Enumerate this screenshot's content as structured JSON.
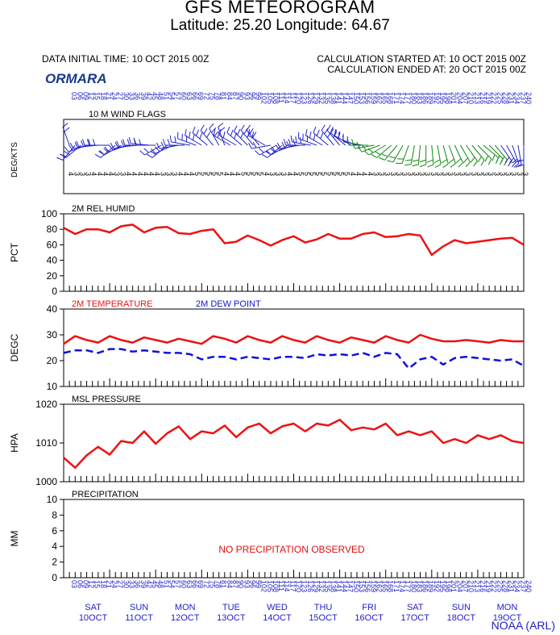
{
  "header": {
    "title": "GFS METEOROGRAM",
    "subtitle": "Latitude: 25.20 Longitude:  64.67",
    "data_initial_time": "DATA INITIAL TIME: 10 OCT 2015 00Z",
    "calc_started": "CALCULATION STARTED AT: 10 OCT 2015 00Z",
    "calc_ended": "CALCULATION ENDED AT: 20 OCT 2015 00Z",
    "station": "ORMARA",
    "credit": "NOAA (ARL)"
  },
  "colors": {
    "temperature": "#ee1111",
    "dewpoint": "#1111dd",
    "humidity": "#ee1111",
    "pressure": "#ee1111",
    "wind_blue": "#2222cc",
    "wind_green": "#118811",
    "label_blue": "#2222cc",
    "no_precip": "#dd1111"
  },
  "days": [
    {
      "dow": "SAT",
      "date": "10OCT"
    },
    {
      "dow": "SUN",
      "date": "11OCT"
    },
    {
      "dow": "MON",
      "date": "12OCT"
    },
    {
      "dow": "TUE",
      "date": "13OCT"
    },
    {
      "dow": "WED",
      "date": "14OCT"
    },
    {
      "dow": "THU",
      "date": "15OCT"
    },
    {
      "dow": "FRI",
      "date": "16OCT"
    },
    {
      "dow": "SAT",
      "date": "17OCT"
    },
    {
      "dow": "SUN",
      "date": "18OCT"
    },
    {
      "dow": "MON",
      "date": "19OCT"
    }
  ],
  "chart_data": [
    {
      "type": "wind_flags",
      "title": "10 M  WIND FLAGS",
      "ylabel": "DEG/KTS",
      "x_hours": [
        0,
        240
      ],
      "time_ticks_top": [
        "03",
        "06",
        "09",
        "12",
        "15",
        "18",
        "21",
        "24",
        "27",
        "30",
        "33",
        "36",
        "39",
        "42",
        "45",
        "48",
        "51",
        "54",
        "57",
        "60",
        "63",
        "66",
        "69",
        "72",
        "75",
        "78",
        "81",
        "84",
        "87",
        "90",
        "93",
        "96",
        "99",
        "102",
        "105",
        "108",
        "111",
        "114",
        "117",
        "120",
        "123",
        "126",
        "129",
        "132",
        "135",
        "138",
        "141",
        "144",
        "147",
        "150",
        "153",
        "156",
        "159",
        "162",
        "165",
        "168",
        "171",
        "174",
        "177",
        "180",
        "183",
        "186",
        "189",
        "192",
        "195",
        "198",
        "201",
        "204",
        "207",
        "210",
        "213",
        "216",
        "219",
        "222",
        "225",
        "228",
        "231",
        "234",
        "237",
        "240"
      ],
      "direction_deg": [
        340,
        220,
        230,
        250,
        260,
        265,
        270,
        270,
        230,
        240,
        250,
        260,
        265,
        270,
        275,
        270,
        240,
        230,
        245,
        260,
        270,
        280,
        290,
        300,
        310,
        320,
        330,
        340,
        300,
        300,
        310,
        315,
        320,
        320,
        300,
        260,
        240,
        230,
        240,
        250,
        260,
        270,
        280,
        290,
        300,
        310,
        320,
        320,
        310,
        300,
        290,
        280,
        270,
        260,
        250,
        240,
        230,
        220,
        210,
        200,
        190,
        185,
        180,
        175,
        170,
        165,
        160,
        155,
        150,
        145,
        140,
        135,
        130,
        135,
        140,
        145,
        150,
        160,
        170,
        180
      ],
      "speed_kts": [
        4,
        3,
        3,
        3,
        4,
        4,
        4,
        4,
        3,
        3,
        4,
        4,
        4,
        4,
        4,
        4,
        3,
        3,
        3,
        4,
        4,
        4,
        5,
        5,
        5,
        5,
        5,
        4,
        4,
        4,
        5,
        5,
        5,
        5,
        4,
        3,
        3,
        3,
        4,
        4,
        5,
        5,
        5,
        5,
        5,
        5,
        5,
        5,
        5,
        4,
        4,
        4,
        4,
        3,
        3,
        3,
        3,
        3,
        3,
        3,
        3,
        3,
        3,
        3,
        3,
        3,
        3,
        3,
        3,
        3,
        3,
        3,
        3,
        3,
        3,
        3,
        3,
        3,
        3,
        3
      ]
    },
    {
      "type": "line",
      "title": "2M REL HUMID",
      "ylabel": "PCT",
      "ylim": [
        0,
        100
      ],
      "yticks": [
        0,
        20,
        40,
        60,
        80,
        100
      ],
      "x_hours": [
        0,
        6,
        12,
        18,
        24,
        30,
        36,
        42,
        48,
        54,
        60,
        66,
        72,
        78,
        84,
        90,
        96,
        102,
        108,
        114,
        120,
        126,
        132,
        138,
        144,
        150,
        156,
        162,
        168,
        174,
        180,
        186,
        192,
        198,
        204,
        210,
        216,
        222,
        228,
        234,
        240
      ],
      "series": [
        {
          "name": "2M REL HUMID",
          "values": [
            82,
            74,
            80,
            80,
            76,
            84,
            86,
            76,
            82,
            83,
            75,
            74,
            78,
            80,
            62,
            64,
            72,
            66,
            59,
            66,
            71,
            63,
            67,
            74,
            68,
            68,
            74,
            76,
            70,
            71,
            74,
            72,
            47,
            58,
            66,
            62,
            64,
            66,
            68,
            69,
            60
          ]
        }
      ]
    },
    {
      "type": "line",
      "ylabel": "DEGC",
      "ylim": [
        10,
        40
      ],
      "yticks": [
        10,
        20,
        30,
        40
      ],
      "legend": [
        "2M TEMPERATURE",
        "2M   DEW POINT"
      ],
      "x_hours": [
        0,
        6,
        12,
        18,
        24,
        30,
        36,
        42,
        48,
        54,
        60,
        66,
        72,
        78,
        84,
        90,
        96,
        102,
        108,
        114,
        120,
        126,
        132,
        138,
        144,
        150,
        156,
        162,
        168,
        174,
        180,
        186,
        192,
        198,
        204,
        210,
        216,
        222,
        228,
        234,
        240
      ],
      "series": [
        {
          "name": "2M TEMPERATURE",
          "values": [
            26.5,
            29.5,
            28,
            27,
            29.5,
            28,
            27,
            29,
            28,
            27,
            28.5,
            27.5,
            26.5,
            29.5,
            28.5,
            27,
            29.5,
            28,
            27,
            29.5,
            28,
            27,
            29.5,
            28,
            27,
            29,
            28,
            27,
            29.5,
            28,
            27,
            30,
            28.5,
            27.5,
            27.5,
            28,
            27.5,
            27,
            28,
            27.5,
            27.5
          ]
        },
        {
          "name": "2M   DEW POINT",
          "values": [
            23,
            24,
            24,
            23,
            24.5,
            24.5,
            23.5,
            24,
            23.5,
            23,
            23,
            22.5,
            20.5,
            21.5,
            21.5,
            20.5,
            21.5,
            21,
            20.5,
            21.5,
            21.5,
            21,
            22.5,
            22,
            22.5,
            22,
            23,
            21.5,
            23,
            22.5,
            17,
            20.5,
            21.5,
            18.5,
            21,
            21.5,
            21,
            20.5,
            20,
            20.5,
            18
          ]
        }
      ]
    },
    {
      "type": "line",
      "title": "MSL PRESSURE",
      "ylabel": "HPA",
      "ylim": [
        1000,
        1020
      ],
      "yticks": [
        1000,
        1010,
        1020
      ],
      "x_hours": [
        0,
        6,
        12,
        18,
        24,
        30,
        36,
        42,
        48,
        54,
        60,
        66,
        72,
        78,
        84,
        90,
        96,
        102,
        108,
        114,
        120,
        126,
        132,
        138,
        144,
        150,
        156,
        162,
        168,
        174,
        180,
        186,
        192,
        198,
        204,
        210,
        216,
        222,
        228,
        234,
        240
      ],
      "series": [
        {
          "name": "MSL PRESSURE",
          "values": [
            1006.2,
            1003.6,
            1006.8,
            1009,
            1007,
            1010.5,
            1010,
            1013,
            1009.8,
            1012.5,
            1014.3,
            1011,
            1013,
            1012.5,
            1014.5,
            1011.5,
            1014,
            1015,
            1012.5,
            1014.3,
            1015,
            1013,
            1015,
            1014.5,
            1016,
            1013.3,
            1014,
            1013.5,
            1015,
            1012,
            1013,
            1012,
            1013,
            1010,
            1011,
            1010,
            1012,
            1011,
            1012,
            1010.5,
            1010
          ]
        }
      ]
    },
    {
      "type": "bar",
      "title": "PRECIPITATION",
      "ylabel": "MM",
      "ylim": [
        0,
        10
      ],
      "yticks": [
        0,
        2,
        4,
        6,
        8,
        10
      ],
      "annotation": "NO PRECIPITATION OBSERVED",
      "values": []
    }
  ]
}
